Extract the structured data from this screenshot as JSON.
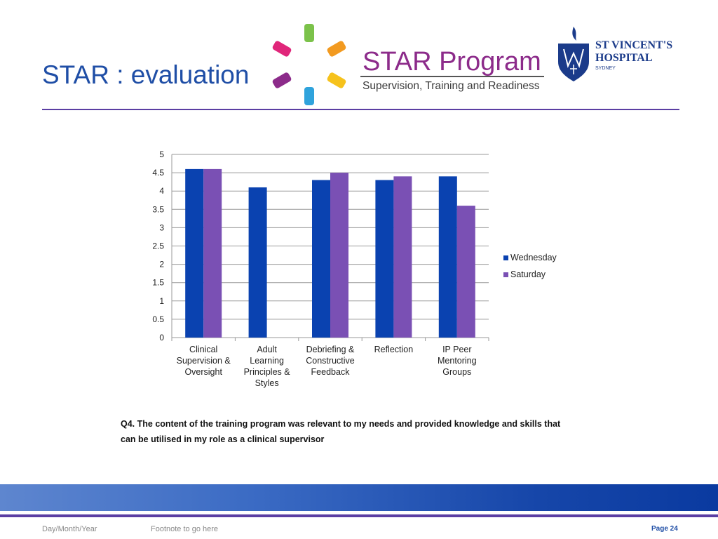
{
  "slide": {
    "title": "STAR : evaluation",
    "question": "Q4. The content of the training program was relevant to my needs and provided knowledge and skills that can be utilised in my role as a clinical supervisor"
  },
  "logos": {
    "star_program": {
      "name": "STAR Program",
      "subtitle": "Supervision, Training and Readiness"
    },
    "hospital": {
      "line1": "ST VINCENT'S",
      "line2": "HOSPITAL",
      "line3": "SYDNEY"
    }
  },
  "footer": {
    "date": "Day/Month/Year",
    "note": "Footnote to go here",
    "page": "Page 24"
  },
  "colors": {
    "title": "#1f4ea6",
    "rule": "#5b3ea3",
    "wednesday": "#0a42b0",
    "saturday": "#7a50b4"
  },
  "chart_data": {
    "type": "bar",
    "title": "",
    "xlabel": "",
    "ylabel": "",
    "categories": [
      [
        "Clinical",
        "Supervision &",
        "Oversight"
      ],
      [
        "Adult",
        "Learning",
        "Principles &",
        "Styles"
      ],
      [
        "Debriefing &",
        "Constructive",
        "Feedback"
      ],
      [
        "Reflection"
      ],
      [
        "IP Peer",
        "Mentoring",
        "Groups"
      ]
    ],
    "series": [
      {
        "name": "Wednesday",
        "color": "#0a42b0",
        "values": [
          4.6,
          4.1,
          4.3,
          4.3,
          4.4
        ]
      },
      {
        "name": "Saturday",
        "color": "#7a50b4",
        "values": [
          4.6,
          null,
          4.5,
          4.4,
          3.6
        ]
      }
    ],
    "ylim": [
      0,
      5
    ],
    "yticks": [
      "0",
      "0.5",
      "1",
      "1.5",
      "2",
      "2.5",
      "3",
      "3.5",
      "4",
      "4.5",
      "5"
    ],
    "grid": true,
    "legend": "right"
  }
}
